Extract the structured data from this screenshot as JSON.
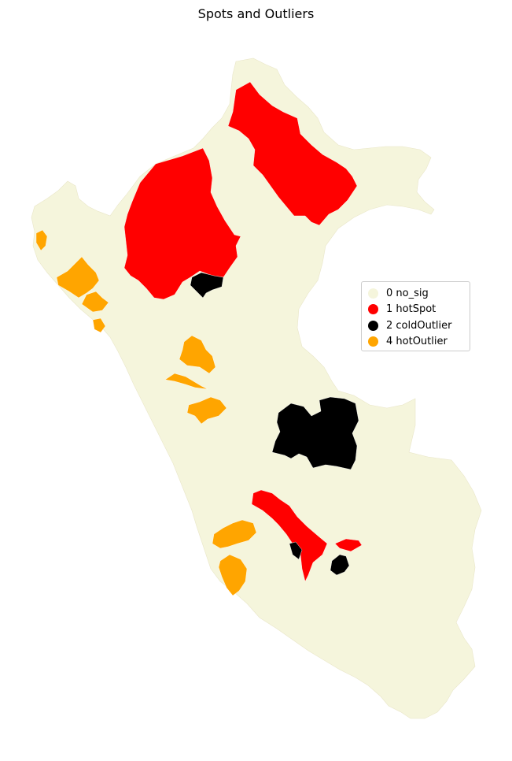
{
  "title": "Spots and Outliers",
  "categories": [
    {
      "key": "0",
      "label": "0 no_sig",
      "color": "#f5f5dc"
    },
    {
      "key": "1",
      "label": "1 hotSpot",
      "color": "#ff0000"
    },
    {
      "key": "2",
      "label": "2 coldOutlier",
      "color": "#000000"
    },
    {
      "key": "4",
      "label": "4 hotOutlier",
      "color": "#ffa500"
    }
  ]
}
